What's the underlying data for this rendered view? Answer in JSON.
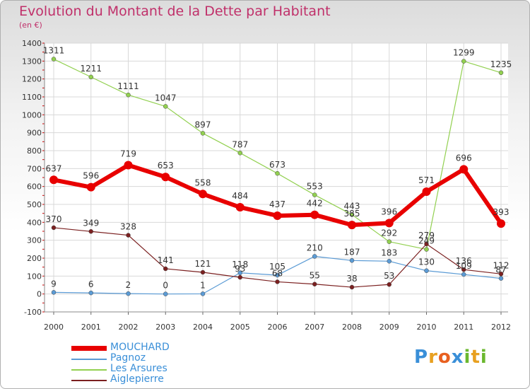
{
  "title": "Evolution du Montant de la Dette par Habitant",
  "subtitle": "(en €)",
  "logo": {
    "text": "Proxiti",
    "letters": [
      {
        "ch": "P",
        "color": "#3a8fd8"
      },
      {
        "ch": "r",
        "color": "#e8a020"
      },
      {
        "ch": "o",
        "color": "#e86020"
      },
      {
        "ch": "x",
        "color": "#3a8fd8"
      },
      {
        "ch": "i",
        "color": "#6bb82e"
      },
      {
        "ch": "t",
        "color": "#e8a020"
      },
      {
        "ch": "i",
        "color": "#6bb82e"
      }
    ]
  },
  "chart_data": {
    "type": "line",
    "title": "Evolution du Montant de la Dette par Habitant",
    "ylabel": "(en €)",
    "ylim": [
      -100,
      1400
    ],
    "yticks": [
      -100,
      0,
      100,
      200,
      300,
      400,
      500,
      600,
      700,
      800,
      900,
      1000,
      1100,
      1200,
      1300,
      1400
    ],
    "categories": [
      "2000",
      "2001",
      "2002",
      "2003",
      "2004",
      "2005",
      "2006",
      "2007",
      "2008",
      "2009",
      "2010",
      "2011",
      "2012"
    ],
    "grid": true,
    "legend_position": "bottom-left",
    "series": [
      {
        "name": "MOUCHARD",
        "color": "#e80000",
        "width": 6,
        "marker": 6,
        "values": [
          637,
          596,
          719,
          653,
          558,
          484,
          437,
          442,
          385,
          396,
          571,
          696,
          393
        ]
      },
      {
        "name": "Pagnoz",
        "color": "#5b9bd5",
        "width": 1.2,
        "marker": 3,
        "values": [
          9,
          6,
          2,
          0,
          1,
          118,
          105,
          210,
          187,
          183,
          130,
          109,
          87
        ]
      },
      {
        "name": "Les Arsures",
        "color": "#92d050",
        "width": 1.2,
        "marker": 3,
        "values": [
          1311,
          1211,
          1111,
          1047,
          897,
          787,
          673,
          553,
          443,
          292,
          249,
          1299,
          1235
        ]
      },
      {
        "name": "Aiglepierre",
        "color": "#7b2020",
        "width": 1.2,
        "marker": 3,
        "values": [
          370,
          349,
          328,
          141,
          121,
          93,
          68,
          55,
          38,
          53,
          279,
          136,
          112
        ]
      }
    ]
  }
}
